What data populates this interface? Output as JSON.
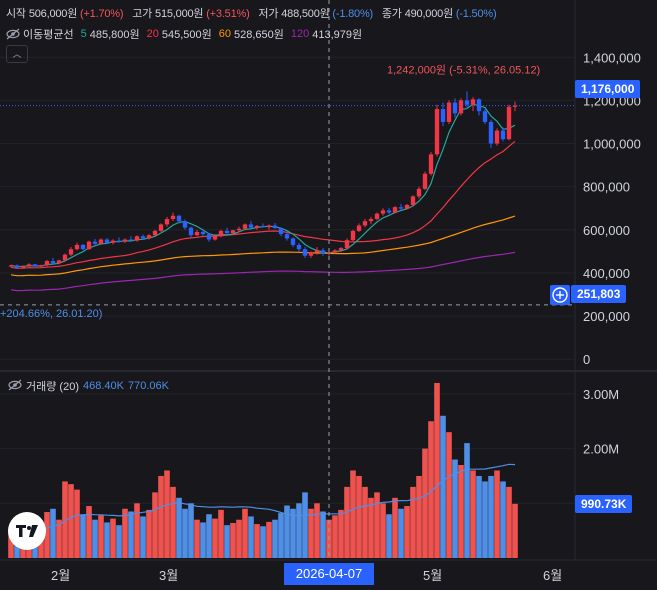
{
  "ohlc": {
    "open_label": "시작",
    "open_value": "506,000원",
    "open_change": "(+1.70%)",
    "high_label": "고가",
    "high_value": "515,000원",
    "high_change": "(+3.51%)",
    "low_label": "저가",
    "low_value": "488,500원",
    "low_change": "(-1.80%)",
    "close_label": "종가",
    "close_value": "490,000원",
    "close_change": "(-1.50%)"
  },
  "ma": {
    "title": "이동평균선",
    "items": [
      {
        "period": "5",
        "value": "485,800원",
        "color": "#26a69a"
      },
      {
        "period": "20",
        "value": "545,500원",
        "color": "#f23645"
      },
      {
        "period": "60",
        "value": "528,650원",
        "color": "#ff9800"
      },
      {
        "period": "120",
        "value": "413,979원",
        "color": "#9c27b0"
      }
    ]
  },
  "volume_legend": {
    "title": "거래량 (20)",
    "value1": "468.40K",
    "value2": "770.06K"
  },
  "price_tag": "1,176,000",
  "crosshair_price_tag": "251,803",
  "volume_tag": "990.73K",
  "crosshair_date": "2026-04-07",
  "annotations": {
    "high": "1,242,000원 (-5.31%, 26.05.12)",
    "low": "+204.66%, 26.01.20)"
  },
  "colors": {
    "up": "#f23645",
    "down": "#2962ff",
    "ma5": "#26a69a",
    "ma20": "#f23645",
    "ma60": "#ff9800",
    "ma120": "#9c27b0",
    "accent": "#2962ff"
  },
  "chart_data": {
    "type": "candlestick",
    "title": "",
    "price_axis": {
      "ticks": [
        0,
        200000,
        400000,
        600000,
        800000,
        1000000,
        1200000,
        1400000
      ],
      "tick_labels": [
        "0",
        "200,000",
        "400,000",
        "600,000",
        "800,000",
        "1,000,000",
        "1,200,000",
        "1,400,000"
      ],
      "range": [
        -50000,
        1480000
      ]
    },
    "volume_axis": {
      "ticks": [
        1000000,
        2000000,
        3000000
      ],
      "tick_labels": [
        "1.00M",
        "2.00M",
        "3.00M"
      ],
      "range": [
        0,
        3400000
      ]
    },
    "x_labels": [
      "2월",
      "3월",
      "4월",
      "5월",
      "6월"
    ],
    "current_price": 1176000,
    "crosshair_price": 251803,
    "candles": [
      [
        430000,
        438000,
        425000,
        435000,
        480000
      ],
      [
        435000,
        440000,
        420000,
        425000,
        520000
      ],
      [
        425000,
        435000,
        420000,
        432000,
        430000
      ],
      [
        432000,
        445000,
        428000,
        440000,
        560000
      ],
      [
        440000,
        442000,
        428000,
        430000,
        600000
      ],
      [
        430000,
        438000,
        426000,
        436000,
        380000
      ],
      [
        436000,
        460000,
        432000,
        455000,
        840000
      ],
      [
        455000,
        470000,
        440000,
        445000,
        900000
      ],
      [
        445000,
        462000,
        440000,
        458000,
        700000
      ],
      [
        458000,
        490000,
        455000,
        485000,
        1400000
      ],
      [
        485000,
        520000,
        478000,
        510000,
        1350000
      ],
      [
        510000,
        540000,
        505000,
        530000,
        1250000
      ],
      [
        530000,
        535000,
        505000,
        510000,
        800000
      ],
      [
        510000,
        550000,
        508000,
        545000,
        950000
      ],
      [
        545000,
        558000,
        530000,
        535000,
        700000
      ],
      [
        535000,
        560000,
        530000,
        555000,
        780000
      ],
      [
        555000,
        562000,
        535000,
        540000,
        650000
      ],
      [
        540000,
        556000,
        532000,
        550000,
        720000
      ],
      [
        550000,
        565000,
        540000,
        545000,
        600000
      ],
      [
        545000,
        560000,
        538000,
        555000,
        900000
      ],
      [
        555000,
        570000,
        545000,
        550000,
        850000
      ],
      [
        550000,
        575000,
        545000,
        570000,
        1000000
      ],
      [
        570000,
        578000,
        555000,
        560000,
        760000
      ],
      [
        560000,
        580000,
        555000,
        575000,
        880000
      ],
      [
        575000,
        600000,
        570000,
        595000,
        1200000
      ],
      [
        595000,
        630000,
        590000,
        625000,
        1500000
      ],
      [
        625000,
        660000,
        615000,
        650000,
        1600000
      ],
      [
        650000,
        680000,
        640000,
        665000,
        1300000
      ],
      [
        665000,
        670000,
        630000,
        640000,
        1100000
      ],
      [
        640000,
        648000,
        600000,
        610000,
        900000
      ],
      [
        610000,
        615000,
        565000,
        575000,
        1000000
      ],
      [
        575000,
        600000,
        570000,
        590000,
        700000
      ],
      [
        590000,
        605000,
        572000,
        580000,
        650000
      ],
      [
        580000,
        585000,
        545000,
        555000,
        800000
      ],
      [
        555000,
        580000,
        550000,
        570000,
        720000
      ],
      [
        570000,
        600000,
        565000,
        595000,
        880000
      ],
      [
        595000,
        610000,
        580000,
        585000,
        600000
      ],
      [
        585000,
        600000,
        578000,
        598000,
        640000
      ],
      [
        598000,
        615000,
        590000,
        605000,
        700000
      ],
      [
        605000,
        630000,
        600000,
        625000,
        900000
      ],
      [
        625000,
        640000,
        605000,
        610000,
        760000
      ],
      [
        610000,
        622000,
        600000,
        618000,
        620000
      ],
      [
        618000,
        630000,
        610000,
        612000,
        580000
      ],
      [
        612000,
        625000,
        600000,
        620000,
        660000
      ],
      [
        620000,
        632000,
        605000,
        608000,
        700000
      ],
      [
        608000,
        612000,
        570000,
        580000,
        820000
      ],
      [
        580000,
        590000,
        550000,
        560000,
        960000
      ],
      [
        560000,
        565000,
        520000,
        530000,
        900000
      ],
      [
        530000,
        540000,
        500000,
        510000,
        1000000
      ],
      [
        510000,
        520000,
        470000,
        480000,
        1200000
      ],
      [
        480000,
        500000,
        470000,
        495000,
        900000
      ],
      [
        495000,
        520000,
        485000,
        505000,
        1000000
      ],
      [
        505000,
        515000,
        480000,
        490000,
        850000
      ],
      [
        490000,
        500000,
        480000,
        495000,
        700000
      ],
      [
        495000,
        510000,
        490000,
        505000,
        780000
      ],
      [
        505000,
        520000,
        498000,
        515000,
        880000
      ],
      [
        515000,
        560000,
        512000,
        552000,
        1300000
      ],
      [
        552000,
        600000,
        548000,
        595000,
        1600000
      ],
      [
        595000,
        630000,
        590000,
        620000,
        1500000
      ],
      [
        620000,
        650000,
        612000,
        640000,
        1300000
      ],
      [
        640000,
        660000,
        625000,
        650000,
        1100000
      ],
      [
        650000,
        680000,
        645000,
        675000,
        1200000
      ],
      [
        675000,
        700000,
        665000,
        690000,
        1000000
      ],
      [
        690000,
        702000,
        672000,
        680000,
        800000
      ],
      [
        680000,
        710000,
        676000,
        705000,
        1100000
      ],
      [
        705000,
        720000,
        690000,
        698000,
        900000
      ],
      [
        698000,
        720000,
        694000,
        715000,
        950000
      ],
      [
        715000,
        760000,
        710000,
        755000,
        1300000
      ],
      [
        755000,
        800000,
        745000,
        790000,
        1500000
      ],
      [
        790000,
        870000,
        785000,
        860000,
        2000000
      ],
      [
        860000,
        960000,
        852000,
        950000,
        2500000
      ],
      [
        950000,
        1180000,
        940000,
        1160000,
        3200000
      ],
      [
        1160000,
        1190000,
        1080000,
        1100000,
        2600000
      ],
      [
        1100000,
        1200000,
        1090000,
        1190000,
        2300000
      ],
      [
        1190000,
        1210000,
        1120000,
        1140000,
        1800000
      ],
      [
        1140000,
        1210000,
        1130000,
        1200000,
        1700000
      ],
      [
        1200000,
        1242000,
        1160000,
        1180000,
        2100000
      ],
      [
        1180000,
        1215000,
        1150000,
        1205000,
        1600000
      ],
      [
        1205000,
        1210000,
        1130000,
        1150000,
        1500000
      ],
      [
        1150000,
        1160000,
        1090000,
        1100000,
        1400000
      ],
      [
        1100000,
        1110000,
        980000,
        1000000,
        1500000
      ],
      [
        1000000,
        1070000,
        990000,
        1060000,
        1600000
      ],
      [
        1060000,
        1075000,
        1010000,
        1020000,
        1400000
      ],
      [
        1020000,
        1180000,
        1015000,
        1170000,
        1300000
      ],
      [
        1170000,
        1195000,
        1150000,
        1176000,
        990000
      ]
    ]
  }
}
